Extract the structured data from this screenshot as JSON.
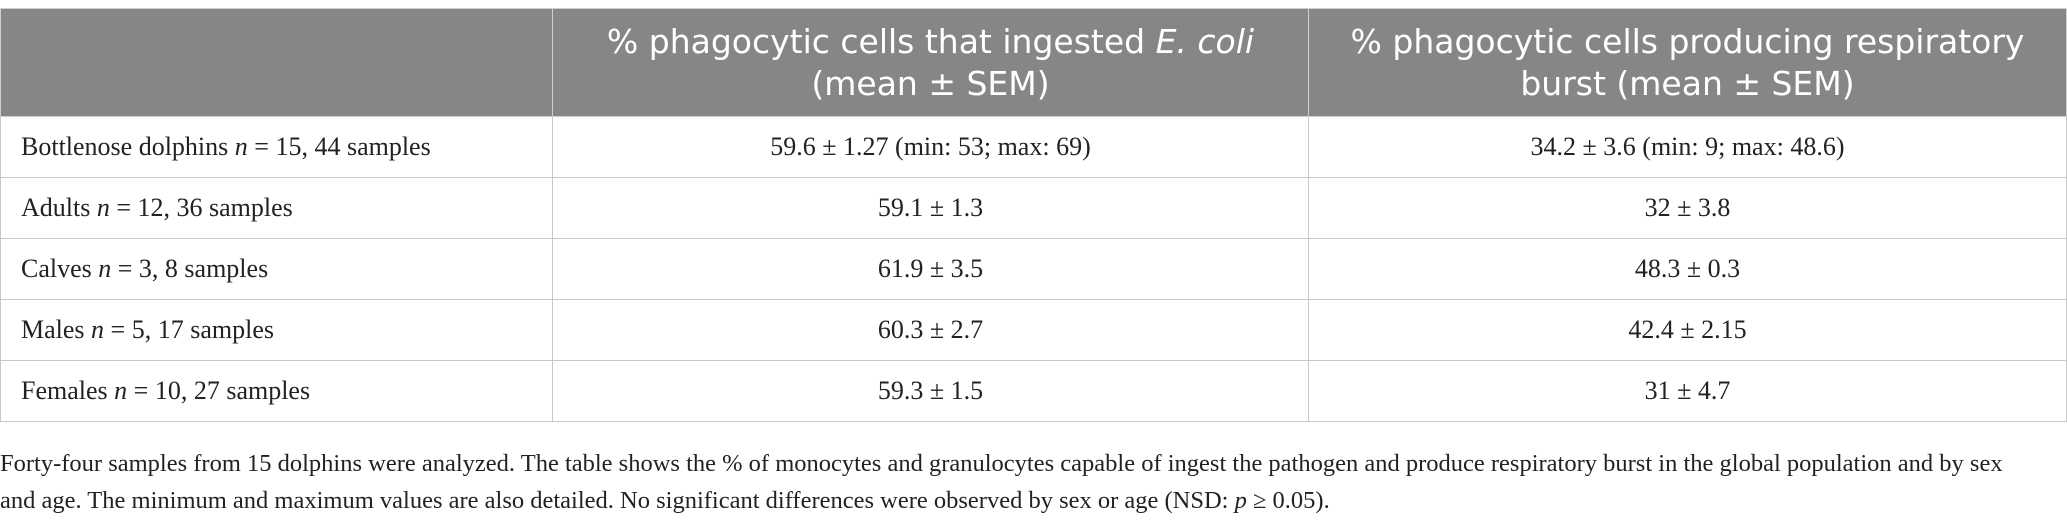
{
  "table": {
    "headers": [
      "",
      {
        "pre": "% phagocytic cells that ingested ",
        "italic": "E. coli",
        "post": " (mean ± SEM)"
      },
      {
        "pre": "% phagocytic cells producing respiratory burst (mean ± SEM)",
        "italic": "",
        "post": ""
      }
    ],
    "rows": [
      {
        "group": "Bottlenose dolphins",
        "n_label": "n",
        "n_text": " = 15, 44 samples",
        "ecoli": "59.6 ± 1.27 (min: 53; max: 69)",
        "burst": "34.2 ± 3.6 (min: 9; max: 48.6)"
      },
      {
        "group": "Adults",
        "n_label": "n",
        "n_text": " = 12, 36 samples",
        "ecoli": "59.1 ± 1.3",
        "burst": "32 ± 3.8"
      },
      {
        "group": "Calves",
        "n_label": "n",
        "n_text": " = 3, 8 samples",
        "ecoli": "61.9 ± 3.5",
        "burst": "48.3 ± 0.3"
      },
      {
        "group": "Males",
        "n_label": "n",
        "n_text": " = 5, 17 samples",
        "ecoli": "60.3 ± 2.7",
        "burst": "42.4 ± 2.15"
      },
      {
        "group": "Females",
        "n_label": "n",
        "n_text": " = 10, 27 samples",
        "ecoli": "59.3 ± 1.5",
        "burst": "31 ± 4.7"
      }
    ]
  },
  "footnote": {
    "text": "Forty-four samples from 15 dolphins were analyzed. The table shows the % of monocytes and granulocytes capable of ingest the pathogen and produce respiratory burst in the global population and by sex and age. The minimum and maximum values are also detailed. No significant differences were observed by sex or age (NSD: ",
    "p_label": "p",
    "p_text": " ≥ 0.05)."
  }
}
